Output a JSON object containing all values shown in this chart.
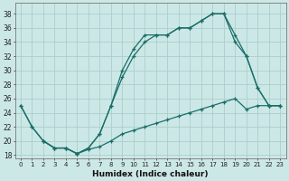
{
  "xlabel": "Humidex (Indice chaleur)",
  "bg_color": "#cce8e6",
  "grid_color": "#aacece",
  "line_color": "#1a6e68",
  "xlim": [
    -0.5,
    23.5
  ],
  "ylim": [
    17.5,
    39.5
  ],
  "xticks": [
    0,
    1,
    2,
    3,
    4,
    5,
    6,
    7,
    8,
    9,
    10,
    11,
    12,
    13,
    14,
    15,
    16,
    17,
    18,
    19,
    20,
    21,
    22,
    23
  ],
  "yticks": [
    18,
    20,
    22,
    24,
    26,
    28,
    30,
    32,
    34,
    36,
    38
  ],
  "line_top_x": [
    0,
    1,
    2,
    3,
    4,
    5,
    6,
    7,
    8,
    9,
    10,
    11,
    12,
    13,
    14,
    15,
    16,
    17,
    18,
    19,
    20,
    21,
    22,
    23
  ],
  "line_top_y": [
    25,
    22,
    20,
    19,
    19,
    18.2,
    19,
    21,
    25,
    30,
    33,
    35,
    35,
    35,
    36,
    36,
    37,
    38,
    38,
    34,
    32,
    27.5,
    25,
    25
  ],
  "line_mid_x": [
    2,
    3,
    4,
    5,
    6,
    7,
    8,
    9,
    10,
    11,
    12,
    13,
    14,
    15,
    16,
    17,
    18,
    19,
    20,
    21,
    22,
    23
  ],
  "line_mid_y": [
    20,
    19,
    19,
    18.2,
    19,
    21,
    25,
    29,
    32,
    34,
    35,
    35,
    36,
    36,
    37,
    38,
    38,
    35,
    32,
    27.5,
    25,
    25
  ],
  "line_bot_x": [
    0,
    1,
    2,
    3,
    4,
    5,
    6,
    7,
    8,
    9,
    10,
    11,
    12,
    13,
    14,
    15,
    16,
    17,
    18,
    19,
    20,
    21,
    22,
    23
  ],
  "line_bot_y": [
    25,
    22,
    20,
    19,
    19,
    18.2,
    18.8,
    19.2,
    20,
    21,
    21.5,
    22,
    22.5,
    23,
    23.5,
    24,
    24.5,
    25,
    25.5,
    26,
    24.5,
    25,
    25,
    25
  ]
}
